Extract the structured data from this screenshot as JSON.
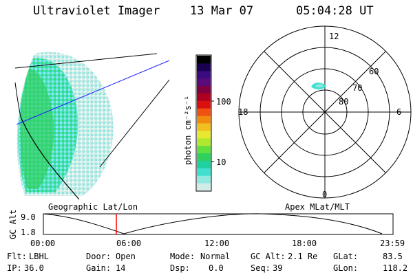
{
  "header": {
    "instrument": "Ultraviolet Imager",
    "date": "13 Mar 07",
    "time": "05:04:28 UT"
  },
  "colorbar": {
    "unit_label": "photon cm⁻²s⁻¹",
    "ticks": [
      "100",
      "10"
    ],
    "colors": [
      "#000000",
      "#1a0050",
      "#3a0a80",
      "#5a0a7a",
      "#800040",
      "#b00020",
      "#d81010",
      "#f05010",
      "#f08a10",
      "#f0c020",
      "#e8e830",
      "#b0e830",
      "#60e040",
      "#30d060",
      "#20d0a0",
      "#40e0d0",
      "#90e8e0",
      "#d0ece8"
    ]
  },
  "polar_plot": {
    "mlt_labels": [
      "12",
      "18",
      "6",
      "0"
    ],
    "mlat_labels": [
      "60",
      "70",
      "80"
    ]
  },
  "timeline": {
    "left_label": "Geographic Lat/Lon",
    "right_label": "Apex MLat/MLT",
    "axis_title": "GC Alt",
    "y_ticks": [
      "9.0",
      "1.8"
    ],
    "x_ticks": [
      "00:00",
      "06:00",
      "12:00",
      "18:00",
      "23:59"
    ]
  },
  "footer": {
    "row1": {
      "flt_label": "Flt:",
      "flt_value": "LBHL",
      "door_label": "Door:",
      "door_value": "Open",
      "mode_label": "Mode:",
      "mode_value": "Normal",
      "gcalt_label": "GC Alt:",
      "gcalt_value": "2.1 Re",
      "glat_label": "GLat:",
      "glat_value": "83.5"
    },
    "row2": {
      "ip_label": "IP:",
      "ip_value": "36.0",
      "gain_label": "Gain:",
      "gain_value": "14",
      "dsp_label": "Dsp:",
      "dsp_value": "0.0",
      "seq_label": "Seq:",
      "seq_value": "39",
      "glon_label": "GLon:",
      "glon_value": "118.2"
    }
  }
}
